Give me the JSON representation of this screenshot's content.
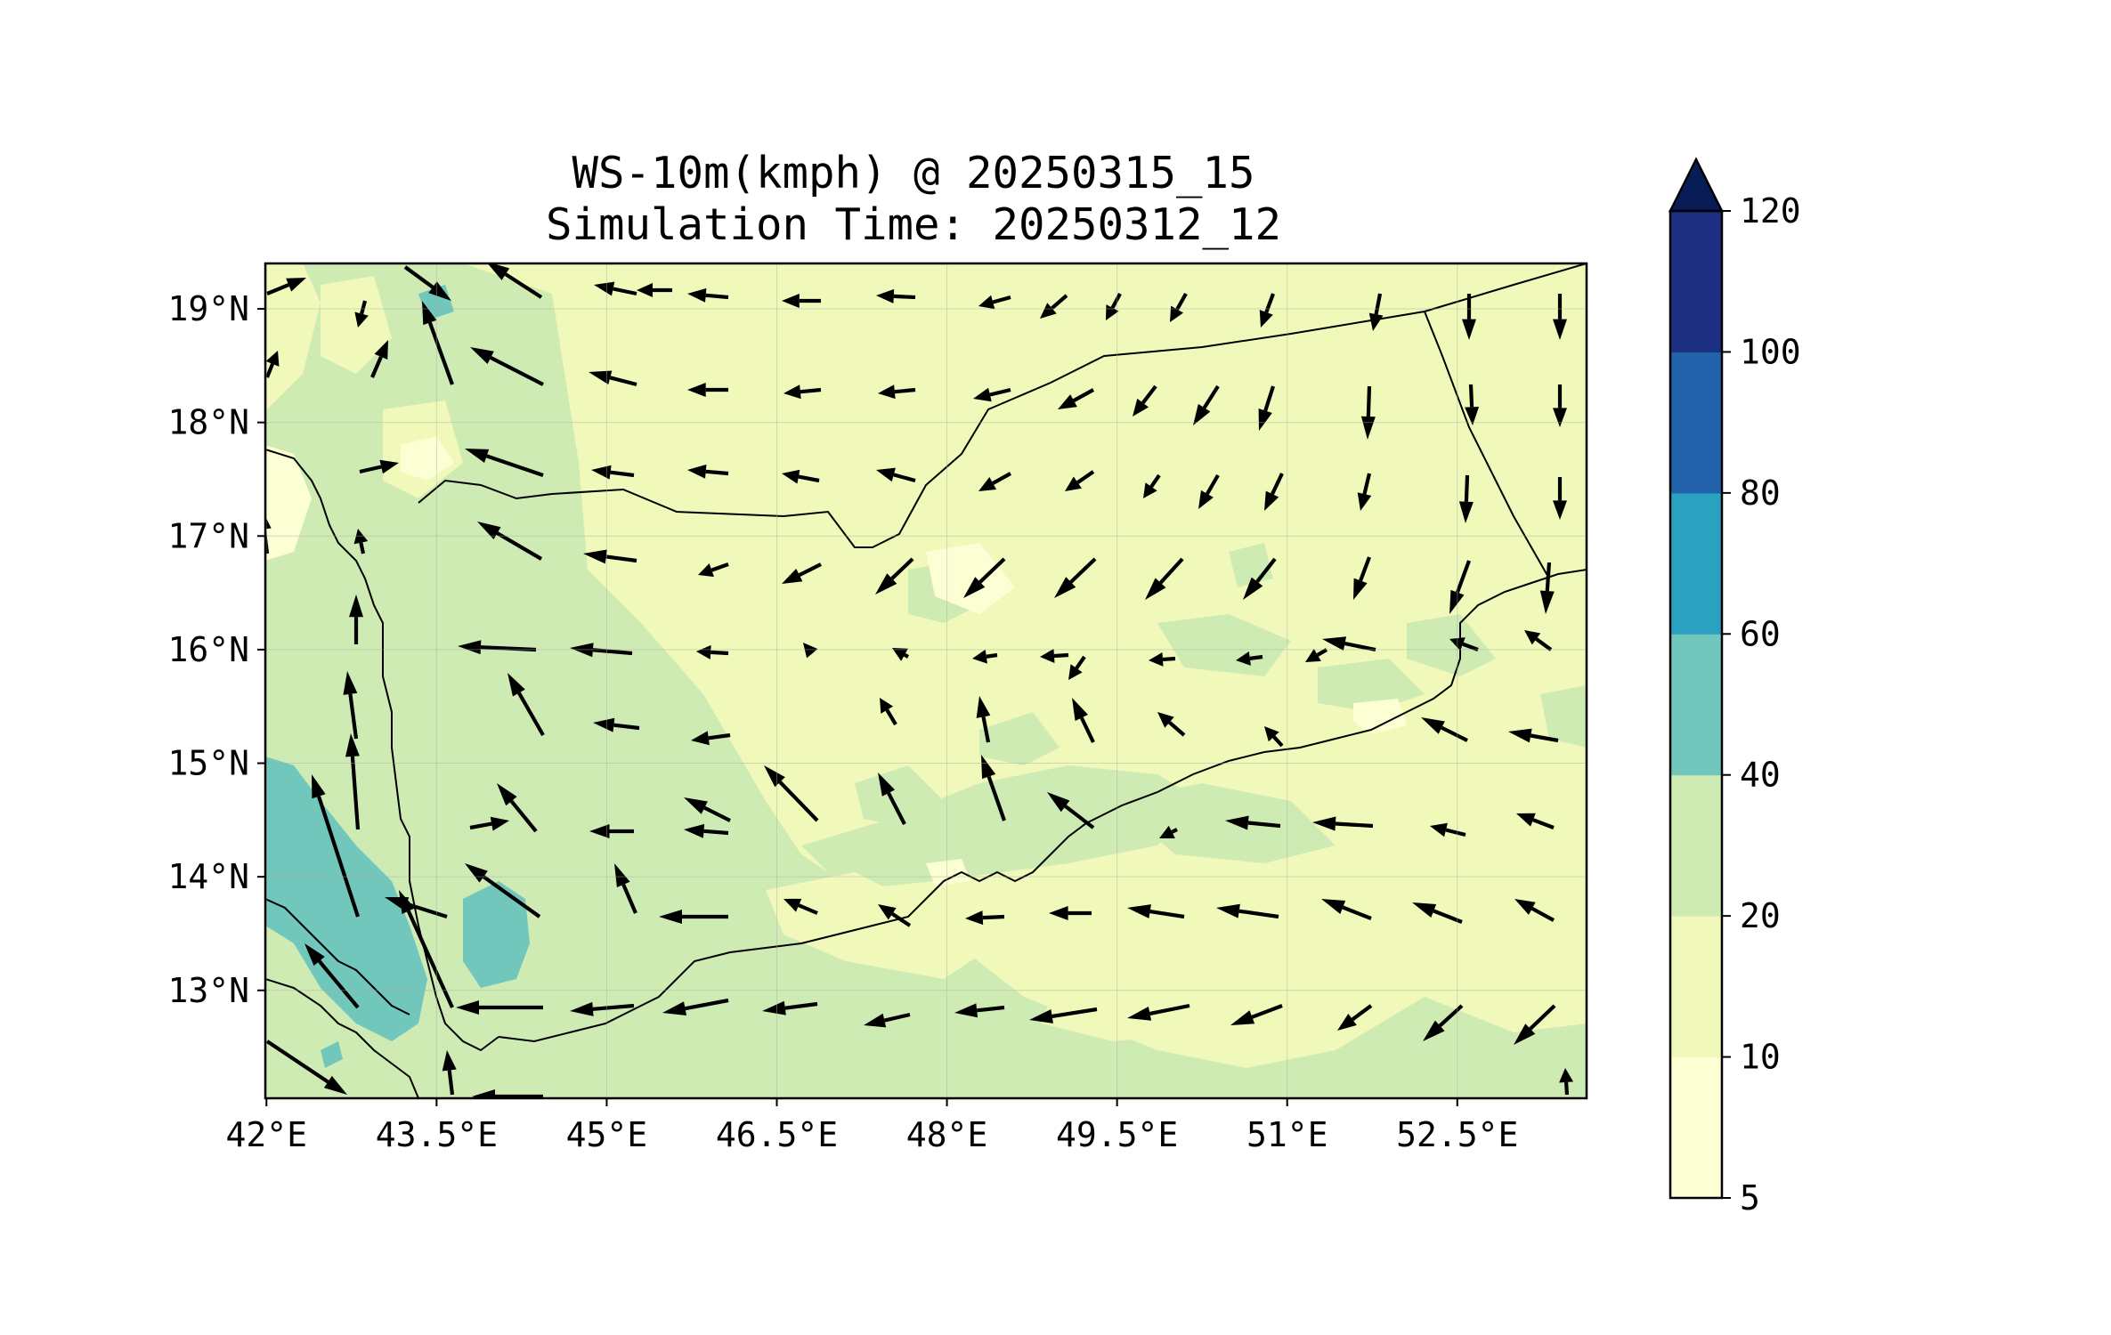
{
  "title": "WS-10m(kmph) @ 20250315_15",
  "subtitle": "Simulation Time: 20250312_12",
  "map": {
    "lon_range": [
      41.99,
      53.64
    ],
    "lat_range": [
      12.05,
      19.4
    ],
    "x_ticks": [
      "42°E",
      "43.5°E",
      "45°E",
      "46.5°E",
      "48°E",
      "49.5°E",
      "51°E",
      "52.5°E"
    ],
    "x_tick_values": [
      42,
      43.5,
      45,
      46.5,
      48,
      49.5,
      51,
      52.5
    ],
    "y_ticks": [
      "13°N",
      "14°N",
      "15°N",
      "16°N",
      "17°N",
      "18°N",
      "19°N"
    ],
    "y_tick_values": [
      13,
      14,
      15,
      16,
      17,
      18,
      19
    ],
    "colors": {
      "c5_10": "#fcfed4",
      "c10_20": "#f0f9b9",
      "c20_40": "#cfebb4",
      "c40_60": "#72c7bd",
      "c60_80": "#2ba1c2",
      "c80_100": "#2162aa",
      "c100_120": "#1c2f80",
      "over": "#081d58"
    }
  },
  "colorbar": {
    "labels": [
      "5",
      "10",
      "20",
      "40",
      "60",
      "80",
      "100",
      "120"
    ]
  }
}
